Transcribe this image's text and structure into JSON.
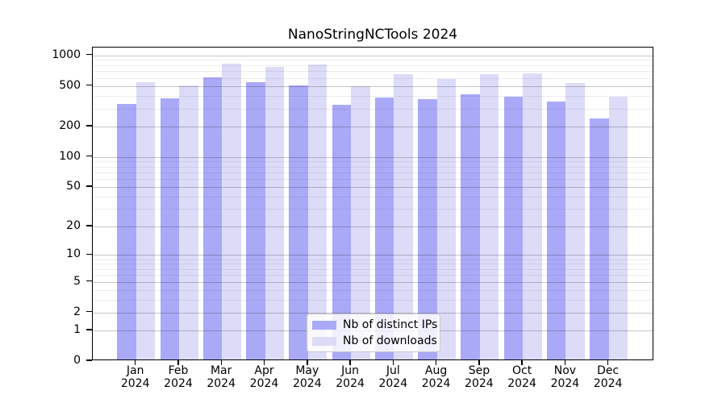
{
  "colors": {
    "ips": "#a9a9f8",
    "downloads": "#dcdcf9",
    "grid_labeled": "rgba(0,0,0,0.22)",
    "grid_minor": "rgba(0,0,0,0.07)"
  },
  "chart_data": {
    "type": "bar",
    "title": "NanoStringNCTools 2024",
    "year": "2024",
    "categories": [
      "Jan",
      "Feb",
      "Mar",
      "Apr",
      "May",
      "Jun",
      "Jul",
      "Aug",
      "Sep",
      "Oct",
      "Nov",
      "Dec"
    ],
    "series": [
      {
        "name": "Nb of distinct IPs",
        "values": [
          335,
          378,
          612,
          545,
          510,
          328,
          383,
          368,
          412,
          390,
          350,
          238
        ]
      },
      {
        "name": "Nb of downloads",
        "values": [
          543,
          503,
          820,
          765,
          818,
          492,
          658,
          584,
          650,
          665,
          533,
          390
        ]
      }
    ],
    "yscale": "log1p",
    "ylim": [
      0,
      1190
    ],
    "yticks": [
      0,
      1,
      2,
      5,
      10,
      20,
      50,
      100,
      200,
      500,
      1000
    ],
    "gridlines": {
      "labeled": [
        1,
        2,
        5,
        10,
        20,
        50,
        100,
        200,
        500,
        1000
      ],
      "minor": [
        3,
        4,
        6,
        7,
        8,
        9,
        30,
        40,
        60,
        70,
        80,
        90,
        300,
        400,
        600,
        700,
        800,
        900
      ]
    },
    "grid": true,
    "legend_position": "bottom-center"
  }
}
